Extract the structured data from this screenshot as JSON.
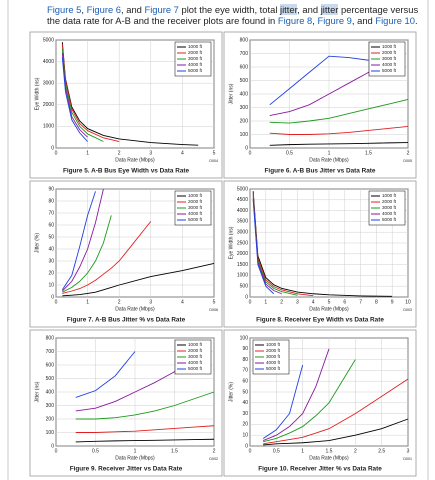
{
  "paragraph": [
    {
      "text": "Figure 5",
      "link": true
    },
    {
      "text": ", "
    },
    {
      "text": "Figure 6",
      "link": true
    },
    {
      "text": ", and "
    },
    {
      "text": "Figure 7",
      "link": true
    },
    {
      "text": " plot the eye width, total "
    },
    {
      "text": "jitter",
      "highlight": true
    },
    {
      "text": ", and "
    },
    {
      "text": "jitter",
      "highlight": true
    },
    {
      "text": " percentage versus the data rate for A-B and the receiver plots are found in "
    },
    {
      "text": "Figure 8",
      "link": true
    },
    {
      "text": ", "
    },
    {
      "text": "Figure 9",
      "link": true
    },
    {
      "text": ", and "
    },
    {
      "text": "Figure 10",
      "link": true
    },
    {
      "text": "."
    }
  ],
  "chart_data": [
    {
      "type": "line",
      "caption": "Figure 5. A-B Bus Eye Width vs Data Rate",
      "code": "D004",
      "xlabel": "Data Rate (Mbps)",
      "ylabel": "Eye Width (ns)",
      "grid": true,
      "legend": "upper-right",
      "xlim": [
        0,
        5
      ],
      "xticks": [
        0,
        1,
        2,
        3,
        4,
        5
      ],
      "ylim": [
        0,
        5000
      ],
      "yticks": [
        0,
        1000,
        2000,
        3000,
        4000,
        5000
      ],
      "x": [
        0.2,
        0.3,
        0.5,
        0.75,
        1,
        1.5,
        2,
        3,
        4,
        4.5
      ],
      "series": [
        {
          "name": "1000 ft",
          "color": "#000000",
          "values": [
            4900,
            3200,
            1900,
            1250,
            900,
            580,
            420,
            250,
            160,
            130
          ]
        },
        {
          "name": "2000 ft",
          "color": "#e02020",
          "values": [
            4800,
            3130,
            1800,
            1130,
            800,
            470,
            300,
            null,
            null,
            null
          ]
        },
        {
          "name": "3000 ft",
          "color": "#1a9a1a",
          "values": [
            4600,
            3000,
            1650,
            1000,
            650,
            300,
            null,
            null,
            null,
            null
          ]
        },
        {
          "name": "4000 ft",
          "color": "#8a1aa0",
          "values": [
            4400,
            2800,
            1450,
            850,
            500,
            null,
            null,
            null,
            null,
            null
          ]
        },
        {
          "name": "5000 ft",
          "color": "#2040e0",
          "values": [
            4200,
            2600,
            1300,
            700,
            300,
            null,
            null,
            null,
            null,
            null
          ]
        }
      ]
    },
    {
      "type": "line",
      "caption": "Figure 6. A-B Bus Jitter vs Data Rate",
      "code": "D005",
      "xlabel": "Data Rate (Mbps)",
      "ylabel": "Jitter (ns)",
      "grid": true,
      "legend": "upper-right",
      "xlim": [
        0,
        2
      ],
      "xticks": [
        0,
        0.5,
        1,
        1.5,
        2
      ],
      "ylim": [
        0,
        800
      ],
      "yticks": [
        0,
        100,
        200,
        300,
        400,
        500,
        600,
        700,
        800
      ],
      "x": [
        0.25,
        0.5,
        0.75,
        1,
        1.25,
        1.5,
        1.75,
        2
      ],
      "series": [
        {
          "name": "1000 ft",
          "color": "#000000",
          "values": [
            20,
            25,
            28,
            30,
            32,
            35,
            38,
            40
          ]
        },
        {
          "name": "2000 ft",
          "color": "#e02020",
          "values": [
            110,
            100,
            100,
            105,
            115,
            130,
            145,
            160
          ]
        },
        {
          "name": "3000 ft",
          "color": "#1a9a1a",
          "values": [
            190,
            185,
            200,
            220,
            255,
            290,
            325,
            360
          ]
        },
        {
          "name": "4000 ft",
          "color": "#8a1aa0",
          "values": [
            240,
            270,
            320,
            400,
            480,
            560,
            640,
            null
          ]
        },
        {
          "name": "5000 ft",
          "color": "#2040e0",
          "values": [
            320,
            440,
            560,
            680,
            670,
            650,
            null,
            null
          ]
        }
      ]
    },
    {
      "type": "line",
      "caption": "Figure 7. A-B Bus Jitter % vs Data Rate",
      "code": "D006",
      "xlabel": "Data Rate (Mbps)",
      "ylabel": "Jitter (%)",
      "grid": true,
      "legend": "upper-right",
      "xlim": [
        0,
        5
      ],
      "xticks": [
        0,
        1,
        2,
        3,
        4,
        5
      ],
      "ylim": [
        0,
        90
      ],
      "yticks": [
        0,
        10,
        20,
        30,
        40,
        50,
        60,
        70,
        80,
        90
      ],
      "x": [
        0.2,
        0.5,
        0.75,
        1,
        1.25,
        1.5,
        1.75,
        2,
        3,
        4,
        5
      ],
      "series": [
        {
          "name": "1000 ft",
          "color": "#000000",
          "values": [
            1,
            1.5,
            2,
            3,
            4,
            6,
            8,
            10,
            17,
            22,
            28
          ]
        },
        {
          "name": "2000 ft",
          "color": "#e02020",
          "values": [
            3,
            5,
            7,
            10,
            14,
            19,
            24,
            30,
            63,
            null,
            null
          ]
        },
        {
          "name": "3000 ft",
          "color": "#1a9a1a",
          "values": [
            4,
            8,
            13,
            20,
            30,
            45,
            68,
            null,
            null,
            null,
            null
          ]
        },
        {
          "name": "4000 ft",
          "color": "#8a1aa0",
          "values": [
            5,
            13,
            25,
            40,
            62,
            90,
            null,
            null,
            null,
            null,
            null
          ]
        },
        {
          "name": "5000 ft",
          "color": "#2040e0",
          "values": [
            6,
            18,
            42,
            68,
            88,
            null,
            null,
            null,
            null,
            null,
            null
          ]
        }
      ]
    },
    {
      "type": "line",
      "caption": "Figure 8. Receiver Eye Width vs Data Rate",
      "code": "D003",
      "xlabel": "Data Rate (Mbps)",
      "ylabel": "Eye Width (ns)",
      "grid": true,
      "legend": "upper-right",
      "xlim": [
        0,
        10
      ],
      "xticks": [
        0,
        1,
        2,
        3,
        4,
        5,
        6,
        7,
        8,
        9,
        10
      ],
      "ylim": [
        0,
        5000
      ],
      "yticks": [
        0,
        500,
        1000,
        1500,
        2000,
        2500,
        3000,
        3500,
        4000,
        4500,
        5000
      ],
      "x": [
        0.2,
        0.5,
        1,
        1.5,
        2,
        3,
        4,
        5,
        7,
        9
      ],
      "series": [
        {
          "name": "1000 ft",
          "color": "#000000",
          "values": [
            4900,
            1900,
            900,
            570,
            400,
            230,
            150,
            100,
            50,
            30
          ]
        },
        {
          "name": "2000 ft",
          "color": "#e02020",
          "values": [
            4800,
            1800,
            800,
            480,
            330,
            150,
            60,
            null,
            null,
            null
          ]
        },
        {
          "name": "3000 ft",
          "color": "#1a9a1a",
          "values": [
            4700,
            1700,
            700,
            400,
            250,
            80,
            null,
            null,
            null,
            null
          ]
        },
        {
          "name": "4000 ft",
          "color": "#8a1aa0",
          "values": [
            4600,
            1600,
            600,
            300,
            150,
            null,
            null,
            null,
            null,
            null
          ]
        },
        {
          "name": "5000 ft",
          "color": "#2040e0",
          "values": [
            4500,
            1500,
            500,
            150,
            null,
            null,
            null,
            null,
            null,
            null
          ]
        }
      ]
    },
    {
      "type": "line",
      "caption": "Figure 9. Receiver Jitter vs Data Rate",
      "code": "D002",
      "xlabel": "Data Rate (Mbps)",
      "ylabel": "Jitter (ns)",
      "grid": true,
      "legend": "upper-right",
      "xlim": [
        0,
        2
      ],
      "xticks": [
        0,
        0.5,
        1,
        1.5,
        2
      ],
      "ylim": [
        0,
        800
      ],
      "yticks": [
        0,
        100,
        200,
        300,
        400,
        500,
        600,
        700,
        800
      ],
      "x": [
        0.25,
        0.5,
        0.75,
        1,
        1.25,
        1.5,
        1.75,
        2
      ],
      "series": [
        {
          "name": "1000 ft",
          "color": "#000000",
          "values": [
            30,
            35,
            38,
            40,
            42,
            45,
            48,
            50
          ]
        },
        {
          "name": "2000 ft",
          "color": "#e02020",
          "values": [
            100,
            100,
            105,
            110,
            120,
            130,
            140,
            150
          ]
        },
        {
          "name": "3000 ft",
          "color": "#1a9a1a",
          "values": [
            200,
            200,
            210,
            230,
            260,
            300,
            350,
            400
          ]
        },
        {
          "name": "4000 ft",
          "color": "#8a1aa0",
          "values": [
            260,
            280,
            330,
            400,
            470,
            550,
            640,
            null
          ]
        },
        {
          "name": "5000 ft",
          "color": "#2040e0",
          "values": [
            360,
            410,
            520,
            700,
            null,
            null,
            null,
            null
          ]
        }
      ]
    },
    {
      "type": "line",
      "caption": "Figure 10. Receiver Jitter % vs Data Rate",
      "code": "D001",
      "xlabel": "Data Rate (Mbps)",
      "ylabel": "Jitter (%)",
      "grid": true,
      "legend": "upper-left",
      "xlim": [
        0,
        3
      ],
      "xticks": [
        0,
        0.5,
        1,
        1.5,
        2,
        2.5,
        3
      ],
      "ylim": [
        0,
        100
      ],
      "yticks": [
        0,
        10,
        20,
        30,
        40,
        50,
        60,
        70,
        80,
        90,
        100
      ],
      "x": [
        0.25,
        0.5,
        0.75,
        1,
        1.25,
        1.5,
        2,
        2.5,
        3
      ],
      "series": [
        {
          "name": "1000 ft",
          "color": "#000000",
          "values": [
            1,
            2,
            2.5,
            3,
            4,
            5,
            10,
            16,
            25
          ]
        },
        {
          "name": "2000 ft",
          "color": "#e02020",
          "values": [
            2,
            4,
            6,
            8,
            12,
            16,
            30,
            46,
            62
          ]
        },
        {
          "name": "3000 ft",
          "color": "#1a9a1a",
          "values": [
            4,
            7,
            12,
            18,
            28,
            40,
            80,
            null,
            null
          ]
        },
        {
          "name": "4000 ft",
          "color": "#8a1aa0",
          "values": [
            5,
            10,
            18,
            30,
            55,
            90,
            null,
            null,
            null
          ]
        },
        {
          "name": "5000 ft",
          "color": "#2040e0",
          "values": [
            7,
            15,
            30,
            75,
            null,
            null,
            null,
            null,
            null
          ]
        }
      ]
    }
  ]
}
